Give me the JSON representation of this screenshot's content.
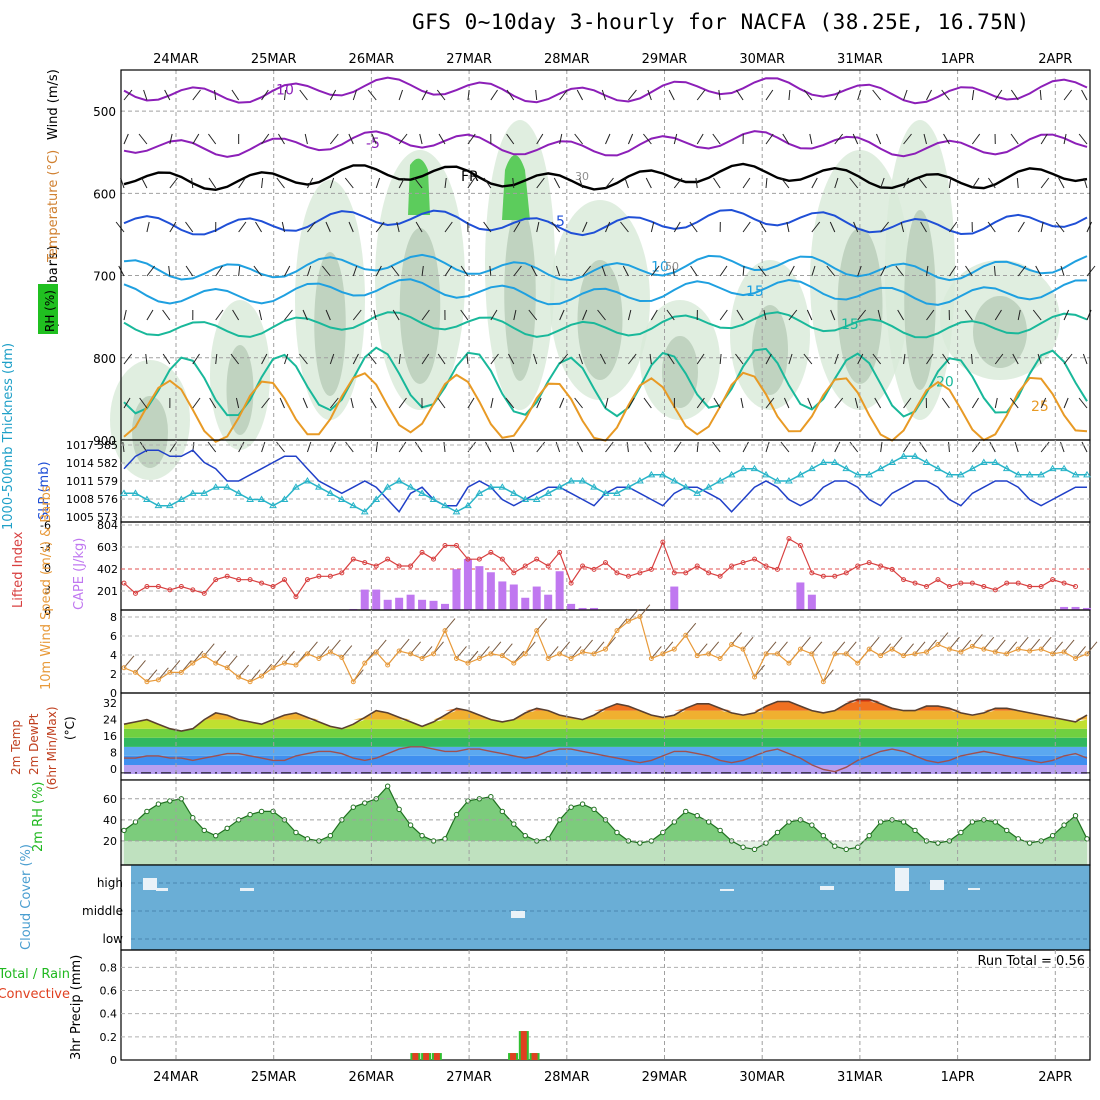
{
  "title": "GFS 0~10day 3-hourly for NACFA (38.25E, 16.75N)",
  "dates": [
    "24MAR",
    "25MAR",
    "26MAR",
    "27MAR",
    "28MAR",
    "29MAR",
    "30MAR",
    "31MAR",
    "1APR",
    "2APR"
  ],
  "colors": {
    "purple": "#8c1fb8",
    "blue": "#1f4fd6",
    "sky": "#1fa0e0",
    "teal": "#19b89a",
    "orange": "#e89a25",
    "lifted": "#d84040",
    "cape_bar": "#c078f0",
    "wind": "#e89a3a",
    "rh_green": "#20b820",
    "cloud_bg": "#6aaed6"
  },
  "chart_data": [
    {
      "type": "heatmap",
      "panel": "upper-air",
      "ylabel": "(millibars)",
      "side_labels": [
        "Wind (m/s)",
        "Temperature (°C)",
        "RH (%)"
      ],
      "yticks": [
        500,
        600,
        700,
        800,
        900
      ],
      "ylim": [
        900,
        450
      ],
      "temperature_contours": [
        {
          "label": "-10",
          "color": "purple",
          "level_mb": 475
        },
        {
          "label": "-5",
          "color": "purple",
          "level_mb": 540
        },
        {
          "label": "FR",
          "color": "black",
          "level_mb": 580
        },
        {
          "label": "5",
          "color": "blue",
          "level_mb": 635
        },
        {
          "label": "10",
          "color": "sky",
          "level_mb": 690
        },
        {
          "label": "15",
          "color": "sky",
          "level_mb": 720
        },
        {
          "label": "15",
          "color": "teal",
          "level_mb": 760
        },
        {
          "label": "20",
          "color": "teal",
          "level_mb": 830
        },
        {
          "label": "25",
          "color": "orange",
          "level_mb": 860
        }
      ],
      "rh_labels": [
        "30",
        "50"
      ]
    },
    {
      "type": "line",
      "panel": "thickness-slp",
      "y_left_label": "1000-500mb Thickness (dm)",
      "y_right_label": "SLP (mb)",
      "yticks_left": [
        "585",
        "582",
        "579",
        "576",
        "573"
      ],
      "yticks_right": [
        "1017",
        "1014",
        "1011",
        "1008",
        "1005"
      ],
      "series": [
        {
          "name": "SLP",
          "color": "#2040c8",
          "values": [
            1013,
            1015,
            1016,
            1016,
            1015,
            1015,
            1016,
            1014,
            1013,
            1011,
            1011,
            1012,
            1013,
            1014,
            1015,
            1015,
            1013,
            1011,
            1010,
            1009,
            1010,
            1011,
            1010,
            1008,
            1006,
            1009,
            1010,
            1008,
            1007,
            1007,
            1010,
            1011,
            1010,
            1008,
            1007,
            1008,
            1009,
            1010,
            1010,
            1009,
            1008,
            1007,
            1009,
            1010,
            1010,
            1009,
            1008,
            1007,
            1009,
            1010,
            1010,
            1009,
            1008,
            1006,
            1008,
            1010,
            1011,
            1010,
            1008,
            1007,
            1008,
            1010,
            1011,
            1011,
            1010,
            1008,
            1007,
            1009,
            1010,
            1011,
            1011,
            1010,
            1008,
            1007,
            1009,
            1010,
            1011,
            1011,
            1010,
            1008,
            1007,
            1008,
            1009,
            1010,
            1010
          ]
        },
        {
          "name": "Thickness",
          "color": "#28b4c8",
          "values": [
            577,
            577,
            576,
            575,
            575,
            576,
            577,
            577,
            578,
            578,
            577,
            576,
            576,
            575,
            576,
            578,
            579,
            578,
            577,
            576,
            575,
            574,
            576,
            578,
            579,
            578,
            577,
            576,
            575,
            574,
            575,
            577,
            578,
            578,
            577,
            576,
            576,
            577,
            578,
            579,
            579,
            578,
            577,
            577,
            578,
            579,
            580,
            580,
            579,
            578,
            577,
            578,
            579,
            580,
            581,
            581,
            580,
            579,
            579,
            580,
            581,
            582,
            582,
            581,
            580,
            580,
            581,
            582,
            583,
            583,
            582,
            581,
            580,
            580,
            581,
            582,
            582,
            581,
            580,
            580,
            580,
            581,
            581,
            580,
            580
          ]
        }
      ]
    },
    {
      "type": "bar",
      "panel": "lifted-cape",
      "y_left_label": "Lifted Index",
      "y_right_label": "CAPE (J/kg)",
      "yticks_left": [
        "-6",
        "-3",
        "0",
        "3",
        "6"
      ],
      "yticks_right": [
        "804",
        "603",
        "402",
        "201"
      ],
      "cape_values": [
        0,
        0,
        0,
        0,
        0,
        0,
        0,
        0,
        0,
        0,
        0,
        0,
        0,
        0,
        0,
        0,
        0,
        0,
        0,
        0,
        10,
        200,
        200,
        100,
        120,
        150,
        100,
        90,
        60,
        400,
        500,
        430,
        370,
        280,
        250,
        120,
        230,
        150,
        380,
        60,
        20,
        20,
        0,
        0,
        0,
        0,
        0,
        0,
        230,
        0,
        0,
        0,
        0,
        0,
        0,
        0,
        0,
        0,
        0,
        270,
        150,
        0,
        0,
        0,
        0,
        0,
        0,
        0,
        0,
        0,
        0,
        0,
        0,
        0,
        0,
        0,
        0,
        0,
        0,
        0,
        0,
        0,
        30,
        30,
        20
      ],
      "lifted_values": [
        2.5,
        4,
        3,
        3,
        3.5,
        3,
        3.5,
        4,
        2,
        1.5,
        2,
        2,
        2.5,
        3,
        2,
        4.5,
        2,
        1.5,
        1.5,
        1,
        -1,
        -0.5,
        0,
        -1,
        0,
        0,
        -2,
        -1,
        -3,
        -3,
        -1,
        -1,
        -2,
        -1,
        1,
        0,
        -1,
        0,
        -2,
        2.5,
        0,
        0.5,
        -0.5,
        1,
        1.5,
        1,
        0.5,
        -3.5,
        1,
        1,
        0,
        1,
        1.5,
        0,
        -0.5,
        -1,
        0,
        0.5,
        -4,
        -3,
        1,
        1.5,
        1.5,
        1,
        0,
        -0.5,
        0,
        0.5,
        2,
        2.5,
        3,
        2,
        3,
        2.5,
        2.5,
        3,
        3.5,
        2.5,
        2.5,
        3,
        3,
        2,
        2.5,
        3
      ]
    },
    {
      "type": "line",
      "panel": "10m-wind",
      "ylabel": "10m Wind Speed (m/s) & Barbs",
      "yticks": [
        "8",
        "6",
        "4",
        "2",
        "0"
      ],
      "ylim": [
        0,
        8.5
      ],
      "values": [
        2.5,
        2,
        1,
        1.2,
        2,
        2,
        3,
        3.8,
        3,
        2.5,
        1.5,
        1,
        1.6,
        2.5,
        3,
        2.8,
        4,
        3.5,
        4.2,
        3.6,
        1,
        3,
        4.2,
        2.8,
        4.3,
        4,
        3.5,
        4,
        6.5,
        3.5,
        3,
        3.5,
        4,
        3.8,
        3,
        4,
        6.5,
        3.5,
        4,
        3.5,
        4.2,
        4,
        4.5,
        6.5,
        7.5,
        8,
        3.5,
        4,
        4.5,
        6,
        3.8,
        4,
        3.5,
        5,
        4.5,
        1.5,
        4,
        4,
        3,
        4.5,
        4,
        1,
        4,
        4,
        3,
        4.5,
        3.8,
        4.5,
        3.8,
        4,
        4.2,
        5,
        4.5,
        4.2,
        4.8,
        4.5,
        4.2,
        4,
        4.5,
        4.3,
        4.5,
        4,
        4.2,
        3.5,
        4
      ]
    },
    {
      "type": "area",
      "panel": "2m-temp-dewpt",
      "ylabel": "2m Temp 2m DewPt (6hr Min/Max) (°C)",
      "yticks": [
        "32",
        "24",
        "16",
        "8",
        "0"
      ],
      "ylim": [
        0,
        34
      ],
      "temp_values": [
        22,
        23,
        24,
        22,
        20,
        19,
        20,
        24,
        27,
        26,
        24,
        23,
        22,
        24,
        26,
        27,
        25,
        23,
        21,
        20,
        22,
        25,
        28,
        27,
        25,
        23,
        21,
        23,
        26,
        29,
        28,
        26,
        24,
        23,
        24,
        27,
        29,
        28,
        26,
        25,
        24,
        26,
        29,
        31,
        30,
        28,
        26,
        25,
        26,
        29,
        31,
        31,
        29,
        27,
        26,
        27,
        30,
        32,
        32,
        30,
        28,
        27,
        28,
        31,
        33,
        33,
        31,
        29,
        28,
        28,
        30,
        30,
        29,
        27,
        26,
        27,
        29,
        29,
        28,
        27,
        26,
        25,
        24,
        23,
        26
      ],
      "dewpt_values": [
        7,
        7,
        8,
        8,
        7,
        7,
        6,
        7,
        8,
        9,
        9,
        8,
        7,
        6,
        6,
        8,
        9,
        10,
        10,
        9,
        7,
        6,
        7,
        9,
        11,
        12,
        12,
        11,
        10,
        10,
        11,
        11,
        10,
        9,
        8,
        7,
        8,
        10,
        11,
        11,
        10,
        9,
        8,
        7,
        6,
        5,
        6,
        8,
        10,
        10,
        9,
        8,
        6,
        5,
        6,
        8,
        10,
        11,
        9,
        7,
        4,
        2,
        1,
        3,
        6,
        8,
        10,
        11,
        10,
        8,
        6,
        5,
        6,
        8,
        9,
        10,
        9,
        8,
        7,
        6,
        5,
        6,
        8,
        9,
        7
      ]
    },
    {
      "type": "area",
      "panel": "2m-rh",
      "ylabel": "2m RH (%)",
      "yticks": [
        "60",
        "40",
        "20"
      ],
      "ylim": [
        0,
        75
      ],
      "values": [
        30,
        38,
        48,
        55,
        58,
        60,
        42,
        30,
        25,
        32,
        40,
        45,
        48,
        48,
        40,
        28,
        22,
        20,
        25,
        40,
        52,
        56,
        60,
        72,
        50,
        35,
        25,
        20,
        22,
        45,
        58,
        60,
        62,
        48,
        36,
        25,
        20,
        22,
        40,
        52,
        55,
        50,
        40,
        28,
        20,
        18,
        20,
        28,
        38,
        48,
        44,
        38,
        30,
        20,
        14,
        12,
        18,
        28,
        38,
        40,
        35,
        25,
        15,
        12,
        14,
        25,
        38,
        40,
        38,
        30,
        20,
        18,
        20,
        28,
        38,
        40,
        38,
        30,
        22,
        18,
        20,
        25,
        35,
        44,
        22
      ]
    },
    {
      "type": "bar",
      "panel": "cloud-cover",
      "ylabel": "Cloud Cover (%)",
      "yticks": [
        "high",
        "middle",
        "low"
      ]
    },
    {
      "type": "bar",
      "panel": "precip",
      "ylabel": "3hr Precip (mm)",
      "side_labels": [
        "Total / Rain",
        "Convective"
      ],
      "yticks": [
        "0.8",
        "0.6",
        "0.4",
        "0.2",
        "0"
      ],
      "ylim": [
        0,
        0.95
      ],
      "run_total_label": "Run Total = 0.56",
      "bars": [
        {
          "date_index": 2.45,
          "total": 0.06
        },
        {
          "date_index": 2.56,
          "total": 0.06
        },
        {
          "date_index": 2.67,
          "total": 0.06
        },
        {
          "date_index": 3.45,
          "total": 0.06
        },
        {
          "date_index": 3.56,
          "total": 0.25
        },
        {
          "date_index": 3.67,
          "total": 0.06
        }
      ]
    }
  ]
}
